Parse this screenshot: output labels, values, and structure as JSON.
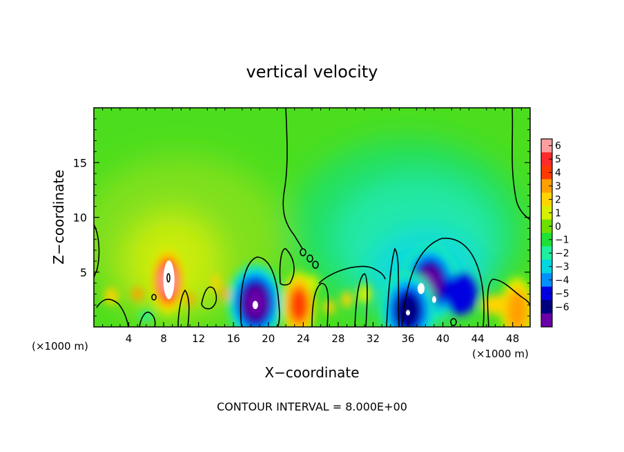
{
  "chart_data": {
    "type": "heatmap",
    "title": "vertical velocity",
    "xlabel": "X−coordinate",
    "ylabel": "Z−coordinate",
    "x_unit_left": "(×1000 m)",
    "x_unit_right": "(×1000 m)",
    "footer": "CONTOUR INTERVAL = 8.000E+00",
    "xlim": [
      0,
      50
    ],
    "ylim": [
      0,
      20
    ],
    "x_ticks": [
      4,
      8,
      12,
      16,
      20,
      24,
      28,
      32,
      36,
      40,
      44,
      48
    ],
    "x_tick_labels": [
      "4",
      "8",
      "12",
      "16",
      "20",
      "24",
      "28",
      "32",
      "36",
      "40",
      "44",
      "48"
    ],
    "y_ticks": [
      5,
      10,
      15
    ],
    "y_tick_labels": [
      "5",
      "10",
      "15"
    ],
    "colorbar": {
      "levels": [
        6,
        5,
        4,
        3,
        2,
        1,
        0,
        -1,
        -2,
        -3,
        -4,
        -5,
        -6
      ],
      "labels": [
        "6",
        "5",
        "4",
        "3",
        "2",
        "1",
        "0",
        "−1",
        "−2",
        "−3",
        "−4",
        "−5",
        "−6"
      ],
      "colors": [
        "#ff9e9e",
        "#ff2a2a",
        "#ff3a00",
        "#ffa000",
        "#ffd400",
        "#d6f000",
        "#6ee000",
        "#1ee036",
        "#1ef0a0",
        "#00d8e0",
        "#0090ff",
        "#0000e0",
        "#000080",
        "#6a00a8"
      ]
    },
    "features": [
      {
        "kind": "updraft",
        "x": 8.5,
        "z": 4.2,
        "peak": 7
      },
      {
        "kind": "updraft",
        "x": 23.5,
        "z": 2.0,
        "peak": 4
      },
      {
        "kind": "updraft",
        "x": 48.5,
        "z": 1.5,
        "peak": 3
      },
      {
        "kind": "downdraft",
        "x": 18.5,
        "z": 2.2,
        "peak": -6
      },
      {
        "kind": "downdraft",
        "x": 38.5,
        "z": 4.0,
        "peak": -6
      },
      {
        "kind": "downdraft",
        "x": 36.0,
        "z": 1.5,
        "peak": -5
      }
    ]
  }
}
